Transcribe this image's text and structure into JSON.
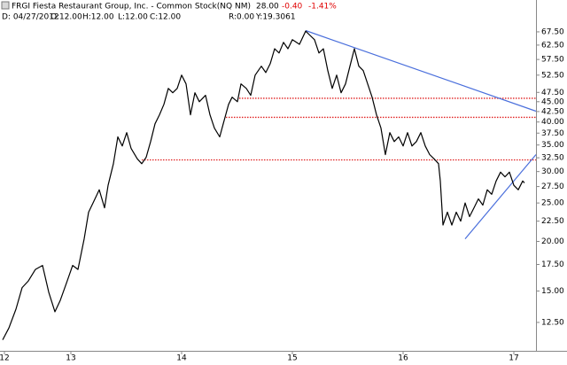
{
  "chart_data": {
    "type": "line",
    "title": "FRGI Fiesta Restaurant Group, Inc. - Common Stock(NQ NM)",
    "last": "28.00",
    "change": "-0.40",
    "change_pct": "-1.41%",
    "info": [
      "D: 04/27/2012",
      "O:12.00",
      "H:12.00",
      "L:12.00",
      "C:12.00",
      "R:0.00",
      "Y:19.3061"
    ],
    "log_scale": true,
    "color": "#000000",
    "x": [
      12.384,
      12.44,
      12.504,
      12.56,
      12.616,
      12.68,
      12.744,
      12.8,
      12.856,
      12.904,
      12.96,
      13.016,
      13.064,
      13.12,
      13.16,
      13.2,
      13.256,
      13.304,
      13.336,
      13.384,
      13.424,
      13.464,
      13.504,
      13.544,
      13.6,
      13.64,
      13.68,
      13.72,
      13.76,
      13.8,
      13.84,
      13.88,
      13.92,
      13.96,
      14.0,
      14.04,
      14.08,
      14.12,
      14.16,
      14.216,
      14.256,
      14.296,
      14.344,
      14.376,
      14.424,
      14.456,
      14.504,
      14.536,
      14.584,
      14.624,
      14.664,
      14.72,
      14.76,
      14.8,
      14.84,
      14.88,
      14.92,
      14.96,
      15.0,
      15.064,
      15.12,
      15.16,
      15.2,
      15.24,
      15.28,
      15.32,
      15.36,
      15.4,
      15.44,
      15.48,
      15.52,
      15.56,
      15.6,
      15.64,
      15.68,
      15.72,
      15.76,
      15.8,
      15.84,
      15.88,
      15.92,
      15.96,
      16.0,
      16.04,
      16.08,
      16.12,
      16.16,
      16.2,
      16.24,
      16.28,
      16.32,
      16.336,
      16.36,
      16.4,
      16.44,
      16.48,
      16.52,
      16.56,
      16.6,
      16.64,
      16.68,
      16.72,
      16.76,
      16.8,
      16.84,
      16.88,
      16.92,
      16.96,
      17.0,
      17.04,
      17.08,
      17.096
    ],
    "values": [
      11.3,
      12.1,
      13.5,
      15.3,
      15.9,
      17.0,
      17.4,
      14.9,
      13.3,
      14.2,
      15.7,
      17.4,
      17.0,
      20.3,
      23.7,
      25.0,
      27.0,
      24.3,
      27.7,
      31.4,
      36.7,
      34.8,
      37.6,
      34.3,
      32.3,
      31.4,
      32.6,
      35.7,
      39.6,
      41.7,
      44.3,
      48.6,
      47.4,
      48.6,
      52.5,
      49.9,
      41.7,
      47.4,
      45.0,
      46.7,
      41.7,
      38.6,
      36.7,
      39.6,
      44.3,
      46.2,
      45.0,
      49.9,
      48.6,
      46.7,
      52.5,
      55.3,
      53.3,
      56.1,
      61.2,
      59.7,
      63.5,
      61.2,
      64.5,
      62.8,
      67.8,
      66.1,
      64.5,
      59.7,
      61.2,
      53.9,
      48.6,
      52.5,
      47.4,
      49.9,
      55.3,
      61.2,
      55.3,
      53.9,
      49.9,
      46.2,
      41.7,
      38.6,
      33.1,
      37.6,
      35.7,
      36.7,
      34.8,
      37.6,
      34.8,
      35.7,
      37.6,
      34.8,
      33.1,
      32.3,
      31.4,
      28.4,
      22.0,
      23.7,
      22.0,
      23.7,
      22.5,
      25.0,
      23.1,
      24.3,
      25.6,
      24.7,
      27.0,
      26.3,
      28.4,
      29.9,
      29.1,
      29.9,
      27.7,
      27.0,
      28.4,
      28.1
    ],
    "trendlines": [
      {
        "color": "#4a6fdc",
        "x": [
          15.12,
          17.2
        ],
        "values": [
          68.0,
          42.6
        ]
      },
      {
        "color": "#4a6fdc",
        "x": [
          16.56,
          17.2
        ],
        "values": [
          20.3,
          33.1
        ]
      }
    ],
    "hlines": [
      {
        "color": "#e02020",
        "start": 14.52,
        "value": 45.9
      },
      {
        "color": "#e02020",
        "start": 14.4,
        "value": 41.1
      },
      {
        "color": "#e02020",
        "start": 13.64,
        "value": 32.1
      }
    ],
    "xlim": [
      12.36,
      17.2
    ],
    "xticks": [
      {
        "value": 12.4,
        "label": "12"
      },
      13,
      14,
      15,
      16,
      17
    ],
    "ylim": [
      10.6,
      81.2
    ],
    "yticks": [
      {
        "value": 12.5,
        "label": "12.50"
      },
      {
        "value": 15,
        "label": "15.00"
      },
      {
        "value": 17.5,
        "label": "17.50"
      },
      {
        "value": 20,
        "label": "20.00"
      },
      {
        "value": 22.5,
        "label": "22.50"
      },
      {
        "value": 25,
        "label": "25.00"
      },
      {
        "value": 27.5,
        "label": "27.50"
      },
      {
        "value": 30,
        "label": "30.00"
      },
      {
        "value": 32.5,
        "label": "32.50"
      },
      {
        "value": 35,
        "label": "35.00"
      },
      {
        "value": 37.5,
        "label": "37.50"
      },
      {
        "value": 40,
        "label": "40.00"
      },
      {
        "value": 42.5,
        "label": "42.50"
      },
      {
        "value": 45,
        "label": "45.00"
      },
      {
        "value": 47.5,
        "label": "47.50"
      },
      {
        "value": 52.5,
        "label": "52.50"
      },
      {
        "value": 57.5,
        "label": "57.50"
      },
      {
        "value": 62.5,
        "label": "62.50"
      },
      {
        "value": 67.5,
        "label": "67.50"
      }
    ]
  }
}
